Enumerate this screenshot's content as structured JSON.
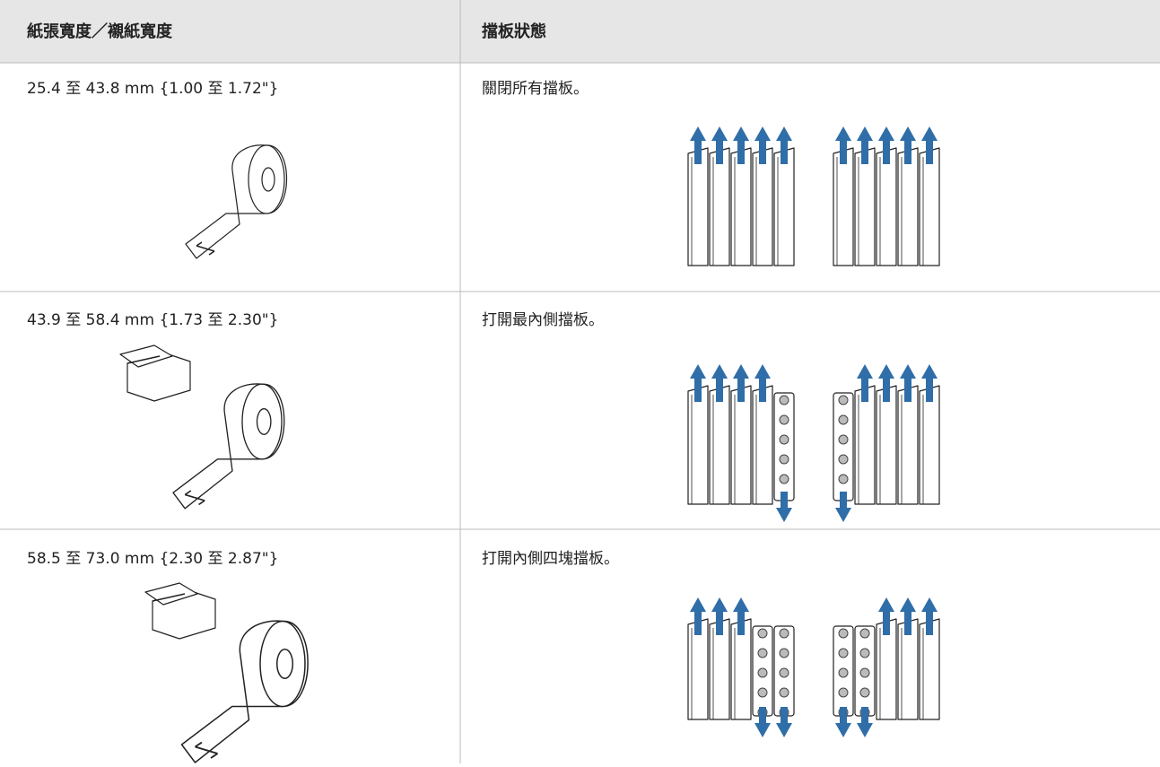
{
  "table": {
    "headers": [
      "紙張寬度／襯紙寬度",
      "擋板狀態"
    ],
    "rows": [
      [
        "25.4 至 43.8 mm {1.00 至 1.72\"}",
        "關閉所有擋板。"
      ],
      [
        "43.9 至 58.4 mm {1.73 至 2.30\"}",
        "打開最內側擋板。"
      ],
      [
        "58.5 至 73.0 mm {2.30 至 2.87\"}",
        "打開內側四塊擋板。"
      ]
    ]
  }
}
